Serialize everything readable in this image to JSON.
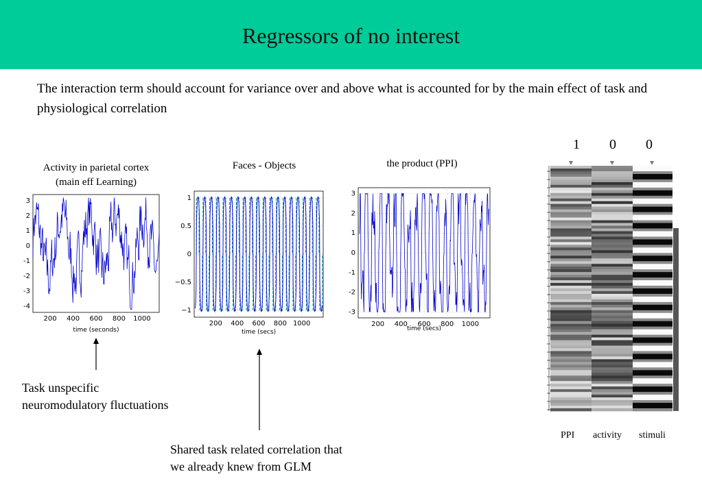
{
  "header": {
    "title": "Regressors of no interest",
    "background": "#00cc99"
  },
  "intro": "The interaction term should account for variance over and above what is accounted for by the main effect of task and physiological correlation",
  "plots": [
    {
      "caption_line1": "Activity in parietal cortex",
      "caption_line2": "(main eff Learning)",
      "xlabel": "time (seconds)",
      "yticks": [
        "3",
        "2",
        "1",
        "0",
        "-1",
        "-2",
        "-3",
        "-4"
      ],
      "xticks": [
        "200",
        "400",
        "600",
        "800",
        "1000"
      ]
    },
    {
      "caption_line1": "Faces - Objects",
      "xlabel": "time (secs)",
      "yticks": [
        "1",
        "0.5",
        "0",
        "−0.5",
        "−1"
      ],
      "xticks": [
        "200",
        "400",
        "600",
        "800",
        "1000"
      ]
    },
    {
      "caption_line1": "the product (PPI)",
      "xlabel": "time (secs)",
      "yticks": [
        "3",
        "2",
        "1",
        "0",
        "-1",
        "-2",
        "-3"
      ],
      "xticks": [
        "200",
        "400",
        "600",
        "800",
        "1000"
      ]
    }
  ],
  "notes": {
    "left_line1": "Task unspecific",
    "left_line2": "neuromodulatory fluctuations",
    "center_line1": "Shared task related correlation that",
    "center_line2": "we already knew from GLM"
  },
  "design_matrix": {
    "contrast": [
      "1",
      "0",
      "0"
    ],
    "columns": [
      "PPI",
      "activity",
      "stimuli"
    ]
  },
  "colors": {
    "signal": "#0000cc",
    "boxcar": "#009999"
  }
}
